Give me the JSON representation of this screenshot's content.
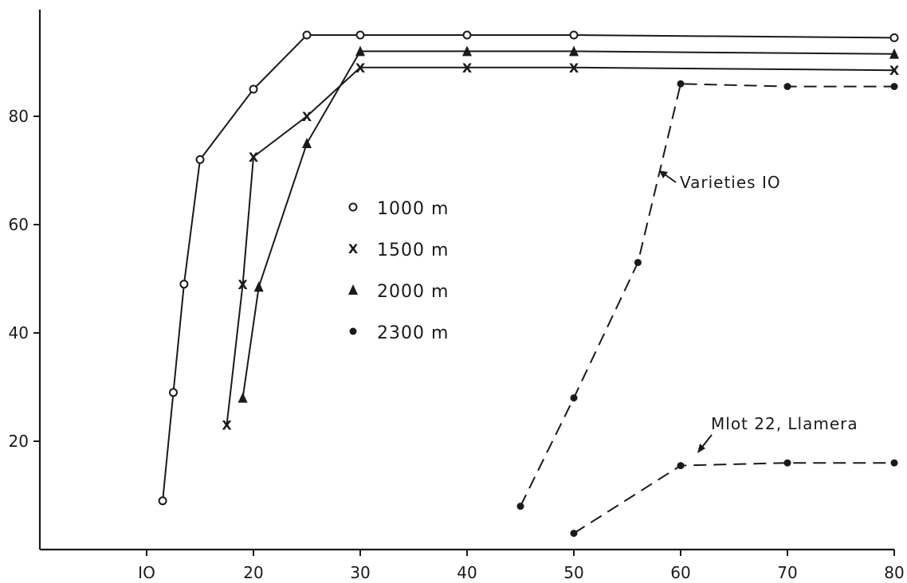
{
  "chart_data": {
    "type": "line",
    "title": "",
    "xlabel": "",
    "ylabel": "",
    "xlim": [
      0,
      80
    ],
    "ylim": [
      0,
      100
    ],
    "xticks": [
      10,
      20,
      30,
      40,
      50,
      60,
      70,
      80
    ],
    "xtick_labels": [
      "IO",
      "20",
      "30",
      "40",
      "50",
      "60",
      "70",
      "80"
    ],
    "yticks": [
      20,
      40,
      60,
      80
    ],
    "ytick_labels": [
      "20",
      "40",
      "60",
      "80"
    ],
    "grid": false,
    "legend_position": "center-left",
    "series": [
      {
        "name": "1000 m",
        "marker": "o",
        "style": "solid",
        "x": [
          11.5,
          12.5,
          13.5,
          15,
          20,
          25,
          30,
          40,
          50,
          80
        ],
        "y": [
          9,
          29,
          49,
          72,
          85,
          95,
          95,
          95,
          95,
          94.5
        ]
      },
      {
        "name": "1500 m",
        "marker": "x",
        "style": "solid",
        "x": [
          17.5,
          19,
          20,
          25,
          30,
          40,
          50,
          80
        ],
        "y": [
          23,
          49,
          72.5,
          80,
          89,
          89,
          89,
          88.5
        ]
      },
      {
        "name": "2000 m",
        "marker": "triangle",
        "style": "solid",
        "x": [
          19,
          20.5,
          25,
          30,
          40,
          50,
          80
        ],
        "y": [
          28,
          48.5,
          75,
          92,
          92,
          92,
          91.5
        ]
      },
      {
        "name": "2300 m",
        "marker": "dot",
        "style": "dashed",
        "group": "Varieties 10",
        "x": [
          45,
          50,
          56,
          60,
          70,
          80
        ],
        "y": [
          8,
          28,
          53,
          86,
          85.5,
          85.5
        ]
      },
      {
        "name": "2300 m",
        "marker": "dot",
        "style": "dashed",
        "group": "Mlot 22, Llamera",
        "x": [
          50,
          60,
          70,
          80
        ],
        "y": [
          3,
          15.5,
          16,
          16
        ]
      }
    ],
    "legend": {
      "entries": [
        {
          "symbol": "o",
          "label": "1000 m"
        },
        {
          "symbol": "x",
          "label": "1500 m"
        },
        {
          "symbol": "triangle",
          "label": "2000 m"
        },
        {
          "symbol": "dot",
          "label": "2300 m"
        }
      ]
    },
    "annotations": [
      {
        "text": "Varieties IO",
        "series": "Varieties 10",
        "x": 58,
        "y": 67
      },
      {
        "text": "Mlot 22, Llamera",
        "series": "Mlot 22, Llamera",
        "x": 62,
        "y": 17
      }
    ],
    "colors": {
      "ink": "#1a1a1a",
      "background": "#ffffff"
    }
  }
}
